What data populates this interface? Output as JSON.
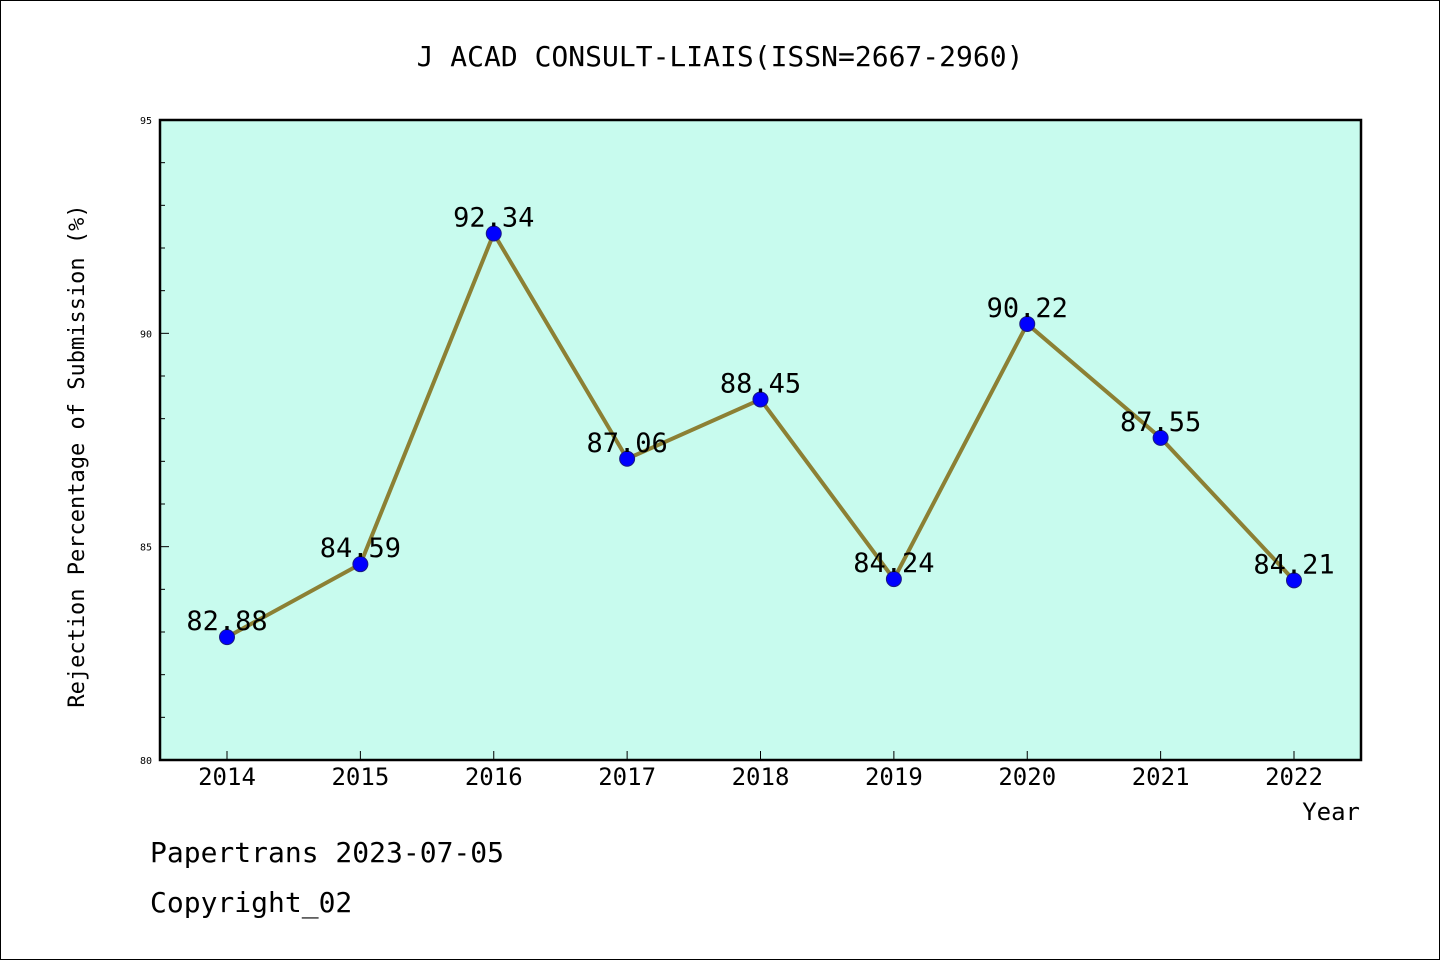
{
  "chart_data": {
    "type": "line",
    "title": "J ACAD CONSULT-LIAIS(ISSN=2667-2960)",
    "xlabel": "Year",
    "ylabel": "Rejection Percentage of Submission (%)",
    "categories": [
      "2014",
      "2015",
      "2016",
      "2017",
      "2018",
      "2019",
      "2020",
      "2021",
      "2022"
    ],
    "values": [
      82.88,
      84.59,
      92.34,
      87.06,
      88.45,
      84.24,
      90.22,
      87.55,
      84.21
    ],
    "data_labels": [
      "82.88",
      "84.59",
      "92.34",
      "87.06",
      "88.45",
      "84.24",
      "90.22",
      "87.55",
      "84.21"
    ],
    "ylim": [
      80,
      95
    ],
    "yticks": [
      "80",
      "85",
      "90",
      "95"
    ],
    "grid": false,
    "colors": {
      "plot_background": "#c8fbee",
      "line": "#8c8034",
      "marker": "#0000ff"
    }
  },
  "footer": {
    "line1": "Papertrans 2023-07-05",
    "line2": "Copyright_02"
  }
}
